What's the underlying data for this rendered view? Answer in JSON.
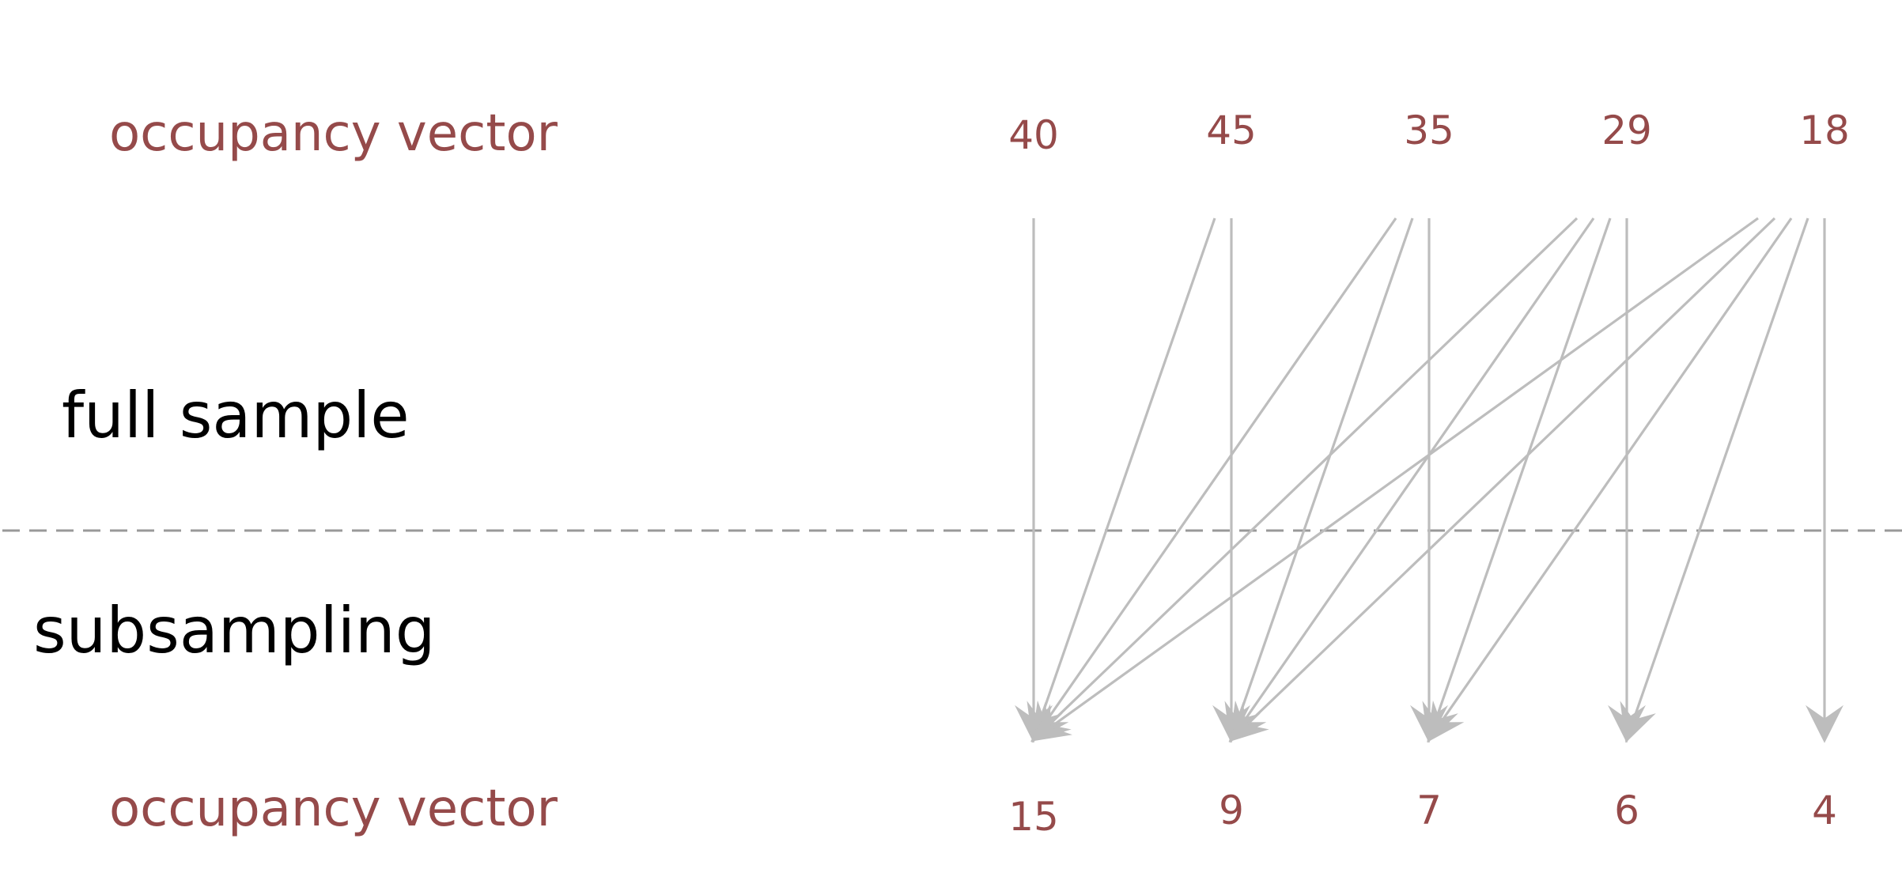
{
  "labels": {
    "top_row": "occupancy vector",
    "full_sample": "full sample",
    "subsampling": "subsampling",
    "bottom_row": "occupancy vector"
  },
  "top_values": [
    "40",
    "45",
    "35",
    "29",
    "18"
  ],
  "bottom_values": [
    "15",
    "9",
    "7",
    "6",
    "4"
  ],
  "colors": {
    "label_red": "#954a4a",
    "arrow_gray": "#bdbdbd",
    "divider_gray": "#999999"
  },
  "connections": [
    {
      "from": 0,
      "to": 0
    },
    {
      "from": 1,
      "to": 0
    },
    {
      "from": 1,
      "to": 1
    },
    {
      "from": 2,
      "to": 0
    },
    {
      "from": 2,
      "to": 1
    },
    {
      "from": 2,
      "to": 2
    },
    {
      "from": 3,
      "to": 0
    },
    {
      "from": 3,
      "to": 1
    },
    {
      "from": 3,
      "to": 2
    },
    {
      "from": 3,
      "to": 3
    },
    {
      "from": 4,
      "to": 0
    },
    {
      "from": 4,
      "to": 1
    },
    {
      "from": 4,
      "to": 2
    },
    {
      "from": 4,
      "to": 3
    },
    {
      "from": 4,
      "to": 4
    }
  ]
}
